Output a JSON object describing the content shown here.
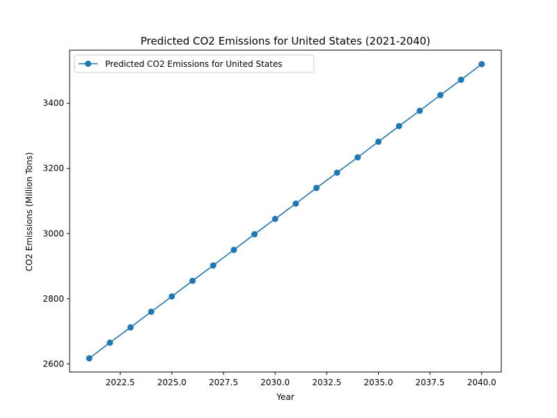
{
  "chart_data": {
    "type": "line",
    "title": "Predicted CO2 Emissions for United States (2021-2040)",
    "xlabel": "Year",
    "ylabel": "CO2 Emissions (Million Tons)",
    "xlim": [
      2020.05,
      2040.95
    ],
    "ylim": [
      2575,
      3563
    ],
    "x_ticks": [
      2022.5,
      2025.0,
      2027.5,
      2030.0,
      2032.5,
      2035.0,
      2037.5,
      2040.0
    ],
    "x_tick_labels": [
      "2022.5",
      "2025.0",
      "2027.5",
      "2030.0",
      "2032.5",
      "2035.0",
      "2037.5",
      "2040.0"
    ],
    "y_ticks": [
      2600,
      2800,
      3000,
      3200,
      3400
    ],
    "y_tick_labels": [
      "2600",
      "2800",
      "3000",
      "3200",
      "3400"
    ],
    "grid": false,
    "legend_position": "top-left",
    "series": [
      {
        "name": "Predicted CO2 Emissions for United States",
        "color": "#1f77b4",
        "marker": "circle",
        "x": [
          2021,
          2022,
          2023,
          2024,
          2025,
          2026,
          2027,
          2028,
          2029,
          2030,
          2031,
          2032,
          2033,
          2034,
          2035,
          2036,
          2037,
          2038,
          2039,
          2040
        ],
        "y": [
          2617,
          2665,
          2712,
          2760,
          2807,
          2855,
          2902,
          2950,
          2998,
          3045,
          3092,
          3140,
          3187,
          3234,
          3282,
          3330,
          3377,
          3425,
          3472,
          3520
        ]
      }
    ]
  }
}
